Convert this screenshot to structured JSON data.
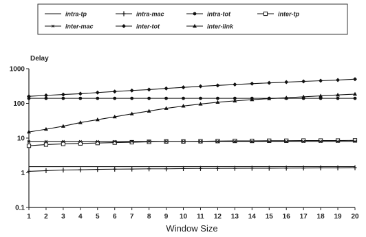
{
  "chart_data": {
    "type": "line",
    "ylabel": "Delay",
    "xlabel": "Window Size",
    "y_scale": "log",
    "ylim": [
      0.1,
      1000
    ],
    "y_ticks": [
      "1000",
      "100",
      "10",
      "1",
      "0.1"
    ],
    "x": [
      1,
      2,
      3,
      4,
      5,
      6,
      7,
      8,
      9,
      10,
      11,
      12,
      13,
      14,
      15,
      16,
      17,
      18,
      19,
      20
    ],
    "grid": false,
    "legend_position": "top",
    "series": [
      {
        "name": "intra-tp",
        "marker": "none",
        "values": [
          1.5,
          1.5,
          1.5,
          1.5,
          1.5,
          1.5,
          1.5,
          1.5,
          1.5,
          1.5,
          1.5,
          1.5,
          1.5,
          1.5,
          1.5,
          1.5,
          1.5,
          1.5,
          1.5,
          1.5
        ]
      },
      {
        "name": "intra-mac",
        "marker": "plus",
        "values": [
          1.1,
          1.15,
          1.2,
          1.22,
          1.25,
          1.27,
          1.28,
          1.3,
          1.3,
          1.32,
          1.33,
          1.33,
          1.34,
          1.35,
          1.35,
          1.36,
          1.37,
          1.38,
          1.38,
          1.4
        ]
      },
      {
        "name": "intra-tot",
        "marker": "dot",
        "values": [
          140,
          140,
          140,
          140,
          140,
          140,
          140,
          140,
          140,
          140,
          140,
          140,
          140,
          140,
          140,
          140,
          140,
          140,
          140,
          140
        ]
      },
      {
        "name": "inter-tp",
        "marker": "square",
        "values": [
          6,
          6.5,
          6.8,
          7,
          7.2,
          7.4,
          7.6,
          7.8,
          8,
          8,
          8.1,
          8.2,
          8.3,
          8.3,
          8.4,
          8.4,
          8.5,
          8.5,
          8.5,
          8.6
        ]
      },
      {
        "name": "inter-mac",
        "marker": "star",
        "values": [
          8,
          8,
          8,
          8,
          8,
          8,
          8,
          8,
          8,
          8,
          8,
          8,
          8,
          8,
          8,
          8,
          8,
          8,
          8,
          8
        ]
      },
      {
        "name": "inter-tot",
        "marker": "diamond",
        "values": [
          160,
          170,
          180,
          190,
          205,
          220,
          235,
          250,
          270,
          290,
          310,
          330,
          350,
          370,
          390,
          410,
          430,
          450,
          470,
          500
        ]
      },
      {
        "name": "inter-link",
        "marker": "triangle",
        "values": [
          15,
          18,
          22,
          28,
          34,
          41,
          50,
          60,
          72,
          84,
          96,
          108,
          118,
          128,
          137,
          145,
          155,
          165,
          175,
          185
        ]
      }
    ]
  }
}
